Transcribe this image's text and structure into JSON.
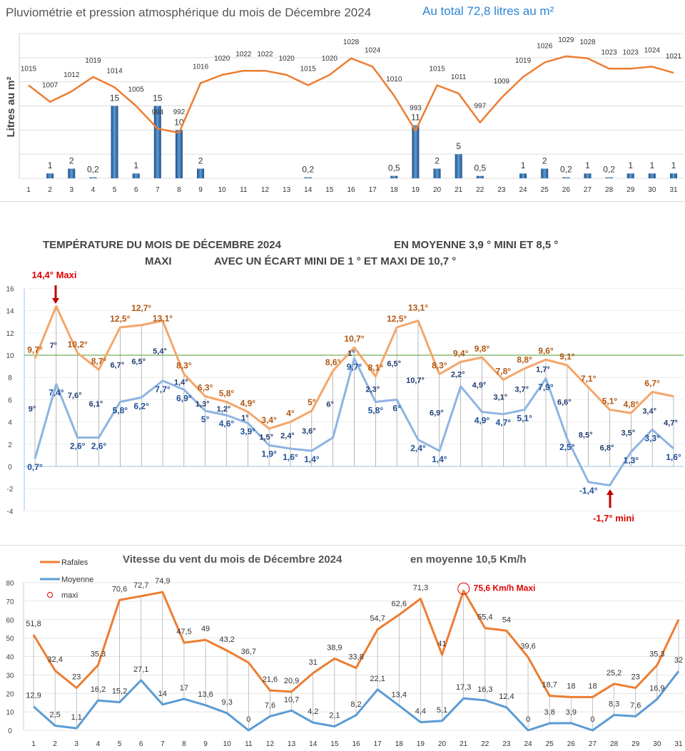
{
  "chart_data": [
    {
      "type": "bar+line",
      "title": "Pluviométrie et pression atmosphérique du mois de Décembre  2024",
      "subtitle": "Au total  72,8  litres au m²",
      "ylabel": "Litres  au  m²",
      "categories": [
        "1",
        "2",
        "3",
        "4",
        "5",
        "6",
        "7",
        "8",
        "9",
        "10",
        "11",
        "12",
        "13",
        "14",
        "15",
        "16",
        "17",
        "18",
        "19",
        "20",
        "21",
        "22",
        "23",
        "24",
        "25",
        "26",
        "27",
        "28",
        "29",
        "30",
        "31"
      ],
      "rain": {
        "values": [
          0,
          1,
          2,
          0.2,
          15,
          1,
          15,
          10,
          2,
          0,
          0,
          0,
          0,
          0.2,
          0,
          0,
          0,
          0.5,
          11,
          2,
          5,
          0.5,
          0,
          1,
          2,
          0.2,
          1,
          0.2,
          1,
          1,
          1
        ],
        "labels": [
          "",
          "1",
          "2",
          "0,2",
          "15",
          "1",
          "15",
          "10",
          "2",
          "",
          "",
          "",
          "",
          "0,2",
          "",
          "",
          "",
          "0,5",
          "11",
          "2",
          "5",
          "0,5",
          "",
          "1",
          "2",
          "0,2",
          "1",
          "0,2",
          "1",
          "1",
          "1"
        ],
        "ylim": [
          0,
          30
        ],
        "color": "#2e6fb0"
      },
      "pressure": {
        "values": [
          1015,
          1007,
          1012,
          1019,
          1014,
          1005,
          994,
          992,
          1016,
          1020,
          1022,
          1022,
          1020,
          1015,
          1020,
          1028,
          1024,
          1010,
          993,
          1015,
          1011,
          997,
          1009,
          1019,
          1026,
          1029,
          1028,
          1023,
          1023,
          1024,
          1021
        ],
        "ylim": [
          970,
          1040
        ],
        "color": "#ed7d31"
      },
      "grid": true
    },
    {
      "type": "line",
      "title_parts": [
        "TEMPÉRATURE DU MOIS DE DÉCEMBRE 2024",
        "EN MOYENNE 3,9 °  MINI  ET  8,5 °",
        "MAXI",
        "AVEC UN ÉCART MINI DE 1 ° ET MAXI DE  10,7 °"
      ],
      "categories": [
        "1",
        "2",
        "3",
        "4",
        "5",
        "6",
        "7",
        "8",
        "9",
        "10",
        "11",
        "12",
        "13",
        "14",
        "15",
        "16",
        "17",
        "18",
        "19",
        "20",
        "21",
        "22",
        "23",
        "24",
        "25",
        "26",
        "27",
        "28",
        "29",
        "30",
        "31"
      ],
      "yticks": [
        "16",
        "14",
        "12",
        "10",
        "8",
        "6",
        "4",
        "2",
        "0",
        "-2",
        "-4"
      ],
      "ylim": [
        -4,
        16
      ],
      "reference_line": 10,
      "max": {
        "values": [
          9.7,
          14.4,
          10.2,
          8.7,
          12.5,
          12.7,
          13.1,
          8.3,
          6.3,
          5.8,
          4.9,
          3.4,
          4,
          5,
          8.6,
          10.7,
          8.1,
          12.5,
          13.1,
          8.3,
          9.4,
          9.8,
          7.8,
          8.8,
          9.6,
          9.1,
          7.1,
          5.1,
          4.8,
          6.7,
          6.3
        ],
        "labels": [
          "9,7°",
          "",
          "10,2°",
          "8,7°",
          "12,5°",
          "12,7°",
          "13,1°",
          "8,3°",
          "6,3°",
          "5,8°",
          "4,9°",
          "3,4°",
          "4°",
          "5°",
          "8,6°",
          "10,7°",
          "8,1°",
          "12,5°",
          "13,1°",
          "8,3°",
          "9,4°",
          "9,8°",
          "7,8°",
          "8,8°",
          "9,6°",
          "9,1°",
          "7,1°",
          "5,1°",
          "4,8°",
          "6,7°",
          ""
        ],
        "color": "#f4a66a"
      },
      "min": {
        "values": [
          0.7,
          7.4,
          2.6,
          2.6,
          5.8,
          6.2,
          7.7,
          6.9,
          5,
          4.6,
          3.9,
          1.9,
          1.6,
          1.4,
          2.6,
          9.7,
          5.8,
          6,
          2.4,
          1.4,
          7.2,
          4.9,
          4.7,
          5.1,
          7.9,
          2.5,
          -1.4,
          -1.7,
          1.3,
          3.3,
          1.6
        ],
        "labels": [
          "0,7°",
          "7,4°",
          "2,6°",
          "2,6°",
          "5,8°",
          "6,2°",
          "7,7°",
          "6,9°",
          "5°",
          "4,6°",
          "3,9°",
          "1,9°",
          "1,6°",
          "1,4°",
          "",
          "9,7°",
          "5,8°",
          "6°",
          "2,4°",
          "1,4°",
          "",
          "4,9°",
          "4,7°",
          "5,1°",
          "7,9°",
          "2,5°",
          "-1,4°",
          "",
          "1,3°",
          "3,3°",
          "1,6°"
        ],
        "color": "#8db4e2"
      },
      "ecart": {
        "labels": [
          "9°",
          "7°",
          "7,6°",
          "6,1°",
          "6,7°",
          "6,5°",
          "5,4°",
          "1,4°",
          "1,3°",
          "1,2°",
          "1°",
          "1,5°",
          "2,4°",
          "3,6°",
          "6°",
          "1°",
          "2,3°",
          "6,5°",
          "10,7°",
          "6,9°",
          "2,2°",
          "4,9°",
          "3,1°",
          "3,7°",
          "1,7°",
          "6,6°",
          "8,5°",
          "6,8°",
          "3,5°",
          "3,4°",
          "4,7°"
        ]
      },
      "annotations": {
        "max": "14,4°  Maxi",
        "min": "-1,7°  mini"
      },
      "grid": true
    },
    {
      "type": "line",
      "title": "Vitesse du vent du mois de Décembre  2024",
      "subtitle": "en moyenne    10,5   Km/h",
      "categories": [
        "1",
        "2",
        "3",
        "4",
        "5",
        "6",
        "7",
        "8",
        "9",
        "10",
        "11",
        "12",
        "13",
        "14",
        "15",
        "16",
        "17",
        "18",
        "19",
        "20",
        "21",
        "22",
        "23",
        "24",
        "25",
        "26",
        "27",
        "28",
        "29",
        "30",
        "31"
      ],
      "yticks": [
        "80",
        "70",
        "60",
        "50",
        "40",
        "30",
        "20",
        "10",
        "0"
      ],
      "ylim": [
        0,
        80
      ],
      "legend": {
        "position": "top-left",
        "items": [
          "Rafales",
          "Moyenne",
          "maxi"
        ]
      },
      "series": [
        {
          "name": "Rafales",
          "color": "#ed7d31",
          "values": [
            51.8,
            32.4,
            23,
            35.3,
            70.6,
            72.7,
            74.9,
            47.5,
            49,
            43.2,
            36.7,
            21.6,
            20.9,
            31,
            38.9,
            33.8,
            54.7,
            62.6,
            71.3,
            41,
            75.6,
            55.4,
            54,
            39.6,
            18.7,
            18,
            18,
            25.2,
            23,
            35.3,
            60
          ],
          "labels": [
            "51,8",
            "32,4",
            "23",
            "35,3",
            "70,6",
            "72,7",
            "74,9",
            "47,5",
            "49",
            "43,2",
            "36,7",
            "21,6",
            "20,9",
            "31",
            "38,9",
            "33,8",
            "54,7",
            "62,6",
            "71,3",
            "41",
            "",
            "55,4",
            "54",
            "39,6",
            "18,7",
            "18",
            "18",
            "25,2",
            "23",
            "35,3",
            ""
          ]
        },
        {
          "name": "Moyenne",
          "color": "#5b9bd5",
          "values": [
            12.9,
            2.5,
            1.1,
            16.2,
            15.2,
            27.1,
            14,
            17,
            13.6,
            9.3,
            0,
            7.6,
            10.7,
            4.2,
            2.1,
            8.2,
            22.1,
            13.4,
            4.4,
            5.1,
            17.3,
            16.3,
            12.4,
            0,
            3.8,
            3.9,
            0,
            8.3,
            7.6,
            16.9,
            32
          ],
          "labels": [
            "12,9",
            "2,5",
            "1,1",
            "16,2",
            "15,2",
            "27,1",
            "14",
            "17",
            "13,6",
            "9,3",
            "0",
            "7,6",
            "10,7",
            "4,2",
            "2,1",
            "8,2",
            "22,1",
            "13,4",
            "4,4",
            "5,1",
            "17,3",
            "16,3",
            "12,4",
            "0",
            "3,8",
            "3,9",
            "0",
            "8,3",
            "7,6",
            "16,9",
            "32"
          ]
        }
      ],
      "annotation": "75,6 Km/h Maxi",
      "grid": true
    }
  ]
}
